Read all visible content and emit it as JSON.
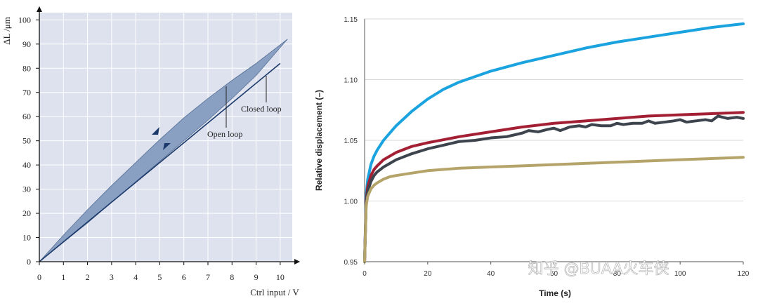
{
  "chart_data": [
    {
      "type": "area",
      "title": "",
      "xlabel": "Ctrl input / V",
      "ylabel": "ΔL /μm",
      "xlim": [
        0,
        10.5
      ],
      "ylim": [
        0,
        103
      ],
      "x_ticks": [
        "0",
        "1",
        "2",
        "3",
        "4",
        "5",
        "6",
        "7",
        "8",
        "9",
        "10"
      ],
      "y_ticks": [
        "0",
        "10",
        "20",
        "30",
        "40",
        "50",
        "60",
        "70",
        "80",
        "90",
        "100"
      ],
      "grid": true,
      "annotations": [
        "Closed loop",
        "Open loop"
      ],
      "series": [
        {
          "name": "Open loop (upper branch)",
          "x": [
            0,
            1,
            2,
            3,
            4,
            5,
            6,
            7,
            8,
            9,
            10.3
          ],
          "y": [
            0,
            11,
            21.5,
            31.5,
            41,
            50.5,
            59.5,
            67.5,
            75,
            82,
            92
          ]
        },
        {
          "name": "Open loop (lower branch)",
          "x": [
            0,
            1,
            2,
            3,
            4,
            5,
            6,
            7,
            8,
            9,
            10.3
          ],
          "y": [
            0,
            8,
            16,
            24.5,
            33,
            41.5,
            50,
            58.5,
            67.5,
            77,
            92
          ]
        },
        {
          "name": "Closed loop",
          "x": [
            0,
            10
          ],
          "y": [
            0,
            82
          ]
        }
      ]
    },
    {
      "type": "line",
      "title": "",
      "xlabel": "Time (s)",
      "ylabel": "Relative displacement  (–)",
      "xlim": [
        0,
        120
      ],
      "ylim": [
        0.95,
        1.15
      ],
      "x_ticks": [
        "0",
        "20",
        "40",
        "60",
        "80",
        "100",
        "120"
      ],
      "y_ticks": [
        "0.95",
        "1.00",
        "1.05",
        "1.10",
        "1.15"
      ],
      "grid": true,
      "legend": "none",
      "series": [
        {
          "color": "#1aa3de",
          "x": [
            0,
            0.5,
            1,
            2,
            3,
            4,
            6,
            8,
            10,
            15,
            20,
            25,
            30,
            40,
            50,
            60,
            70,
            80,
            90,
            100,
            110,
            120
          ],
          "y": [
            0.95,
            1.005,
            1.018,
            1.03,
            1.037,
            1.042,
            1.05,
            1.056,
            1.062,
            1.074,
            1.084,
            1.092,
            1.098,
            1.107,
            1.114,
            1.12,
            1.126,
            1.131,
            1.135,
            1.139,
            1.143,
            1.146
          ]
        },
        {
          "color": "#a31f34",
          "x": [
            0,
            0.5,
            1,
            2,
            3,
            4,
            6,
            8,
            10,
            15,
            20,
            30,
            40,
            50,
            60,
            70,
            80,
            90,
            100,
            110,
            120
          ],
          "y": [
            0.95,
            1.0,
            1.012,
            1.021,
            1.026,
            1.029,
            1.034,
            1.037,
            1.04,
            1.045,
            1.048,
            1.053,
            1.057,
            1.061,
            1.064,
            1.066,
            1.068,
            1.07,
            1.071,
            1.072,
            1.073
          ]
        },
        {
          "color": "#3d444d",
          "x": [
            0,
            0.5,
            1,
            2,
            3,
            4,
            6,
            8,
            10,
            15,
            20,
            25,
            30,
            35,
            40,
            45,
            50,
            52,
            55,
            58,
            60,
            62,
            65,
            68,
            70,
            72,
            75,
            78,
            80,
            82,
            85,
            88,
            90,
            92,
            95,
            98,
            100,
            102,
            105,
            108,
            110,
            112,
            115,
            118,
            120
          ],
          "y": [
            0.95,
            0.998,
            1.008,
            1.016,
            1.021,
            1.024,
            1.028,
            1.031,
            1.034,
            1.039,
            1.043,
            1.046,
            1.049,
            1.05,
            1.052,
            1.053,
            1.056,
            1.058,
            1.057,
            1.059,
            1.06,
            1.058,
            1.061,
            1.062,
            1.061,
            1.063,
            1.062,
            1.062,
            1.064,
            1.063,
            1.064,
            1.064,
            1.066,
            1.064,
            1.065,
            1.066,
            1.067,
            1.065,
            1.066,
            1.067,
            1.066,
            1.07,
            1.068,
            1.069,
            1.068
          ]
        },
        {
          "color": "#b5a46a",
          "x": [
            0,
            0.5,
            1,
            2,
            3,
            4,
            6,
            8,
            10,
            15,
            20,
            30,
            40,
            50,
            60,
            70,
            80,
            90,
            100,
            110,
            120
          ],
          "y": [
            0.95,
            0.996,
            1.004,
            1.01,
            1.013,
            1.015,
            1.018,
            1.02,
            1.021,
            1.023,
            1.025,
            1.027,
            1.028,
            1.029,
            1.03,
            1.031,
            1.032,
            1.033,
            1.034,
            1.035,
            1.036
          ]
        }
      ]
    }
  ],
  "watermark": "知乎 @BUAA火车侠",
  "colors": {
    "left_panel_bg": "#dde2ee",
    "left_grid": "#ffffff",
    "hysteresis_fill": "#8aa0c2",
    "hysteresis_stroke": "#1b3a6b",
    "closed_loop": "#1b3a6b",
    "right_grid": "#d9d9d9"
  }
}
